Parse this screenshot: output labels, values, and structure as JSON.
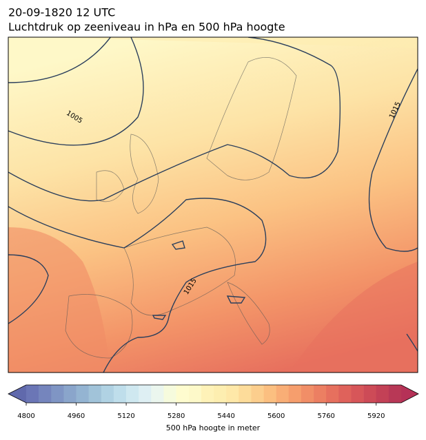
{
  "header": {
    "title": "20-09-1820 12 UTC",
    "subtitle": "Luchtdruk op zeeniveau in hPa en 500 hPa hoogte"
  },
  "map": {
    "contour_labels": [
      1005,
      1015,
      1015
    ]
  },
  "colorbar": {
    "label": "500 hPa hoogte in meter",
    "lim": [
      4800,
      6000
    ],
    "ticks": [
      4800,
      4960,
      5120,
      5280,
      5440,
      5600,
      5760,
      5920
    ],
    "under_color": "#6069ac",
    "over_color": "#b53157",
    "colors": [
      "#6b76b6",
      "#7585bd",
      "#7f95c4",
      "#8aa5cb",
      "#94b4d2",
      "#a1c3d9",
      "#b0d2e3",
      "#bfdeeb",
      "#cfe8f0",
      "#deeff3",
      "#ebf6ee",
      "#f6fbdd",
      "#fefccf",
      "#fdf9c9",
      "#fef2b8",
      "#fdeeb0",
      "#fee8a8",
      "#fddc9a",
      "#fcce8d",
      "#fbbf80",
      "#f9ae76",
      "#f69e6d",
      "#f18e67",
      "#ec7f62",
      "#e6705e",
      "#df625b",
      "#d75659",
      "#cd4b57",
      "#c34156",
      "#b83856"
    ]
  }
}
